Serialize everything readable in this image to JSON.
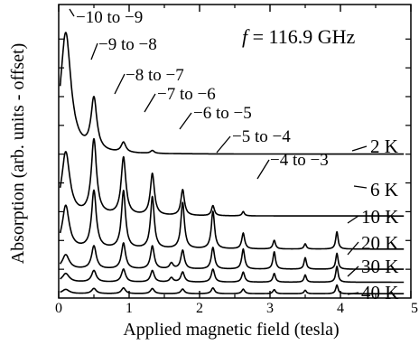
{
  "chart_data": {
    "type": "line",
    "title": "",
    "frequency_label": {
      "symbol": "f",
      "text": " = 116.9 GHz"
    },
    "xlabel": "Applied magnetic field (tesla)",
    "ylabel": "Absorption (arb. units - offset)",
    "xlim": [
      0,
      5
    ],
    "x_ticks": [
      0,
      1,
      2,
      3,
      4,
      5
    ],
    "y_ticks_shown": false,
    "grid": false,
    "legend": "none",
    "series": [
      {
        "name": "2 K",
        "baseline": 5.0,
        "peaks": [
          [
            0.1,
            4.2,
            0.09
          ],
          [
            0.5,
            1.8,
            0.05
          ],
          [
            0.92,
            0.35,
            0.04
          ],
          [
            1.33,
            0.1,
            0.03
          ]
        ]
      },
      {
        "name": "6 K",
        "baseline": 2.85,
        "peaks": [
          [
            0.1,
            2.2,
            0.07
          ],
          [
            0.5,
            2.6,
            0.045
          ],
          [
            0.92,
            2.0,
            0.04
          ],
          [
            1.33,
            1.45,
            0.035
          ],
          [
            1.76,
            0.9,
            0.03
          ],
          [
            2.19,
            0.35,
            0.025
          ],
          [
            2.62,
            0.15,
            0.02
          ]
        ]
      },
      {
        "name": "10 K",
        "baseline": 1.7,
        "peaks": [
          [
            0.1,
            1.5,
            0.06
          ],
          [
            0.5,
            2.0,
            0.04
          ],
          [
            0.92,
            2.0,
            0.035
          ],
          [
            1.33,
            1.8,
            0.032
          ],
          [
            1.76,
            1.6,
            0.03
          ],
          [
            2.19,
            1.3,
            0.028
          ],
          [
            2.62,
            0.55,
            0.025
          ],
          [
            3.06,
            0.3,
            0.022
          ],
          [
            3.5,
            0.18,
            0.02
          ],
          [
            3.95,
            0.6,
            0.02
          ]
        ]
      },
      {
        "name": "20 K",
        "baseline": 1.0,
        "peaks": [
          [
            0.1,
            0.5,
            0.06
          ],
          [
            0.5,
            0.8,
            0.04
          ],
          [
            0.92,
            0.9,
            0.035
          ],
          [
            1.33,
            0.8,
            0.032
          ],
          [
            1.6,
            0.2,
            0.03
          ],
          [
            1.76,
            0.65,
            0.03
          ],
          [
            2.19,
            0.75,
            0.028
          ],
          [
            2.62,
            0.7,
            0.025
          ],
          [
            3.06,
            0.6,
            0.022
          ],
          [
            3.5,
            0.4,
            0.02
          ],
          [
            3.95,
            0.55,
            0.02
          ]
        ]
      },
      {
        "name": "30 K",
        "baseline": 0.55,
        "peaks": [
          [
            0.1,
            0.3,
            0.06
          ],
          [
            0.5,
            0.4,
            0.04
          ],
          [
            0.92,
            0.45,
            0.035
          ],
          [
            1.33,
            0.4,
            0.032
          ],
          [
            1.6,
            0.15,
            0.03
          ],
          [
            1.76,
            0.35,
            0.03
          ],
          [
            2.19,
            0.45,
            0.028
          ],
          [
            2.62,
            0.35,
            0.025
          ],
          [
            3.06,
            0.3,
            0.022
          ],
          [
            3.5,
            0.25,
            0.02
          ],
          [
            3.95,
            0.55,
            0.02
          ]
        ]
      },
      {
        "name": "40 K",
        "baseline": 0.15,
        "peaks": [
          [
            0.1,
            0.15,
            0.06
          ],
          [
            0.5,
            0.18,
            0.04
          ],
          [
            0.92,
            0.2,
            0.035
          ],
          [
            1.33,
            0.18,
            0.032
          ],
          [
            1.76,
            0.16,
            0.03
          ],
          [
            2.19,
            0.2,
            0.028
          ],
          [
            2.62,
            0.16,
            0.025
          ],
          [
            3.06,
            0.14,
            0.022
          ],
          [
            3.5,
            0.12,
            0.02
          ],
          [
            3.95,
            0.3,
            0.02
          ]
        ]
      }
    ],
    "annotations": [
      "−10 to −9",
      "−9 to −8",
      "−8 to −7",
      "−7 to −6",
      "−6 to −5",
      "−5 to −4",
      "−4 to −3"
    ]
  }
}
